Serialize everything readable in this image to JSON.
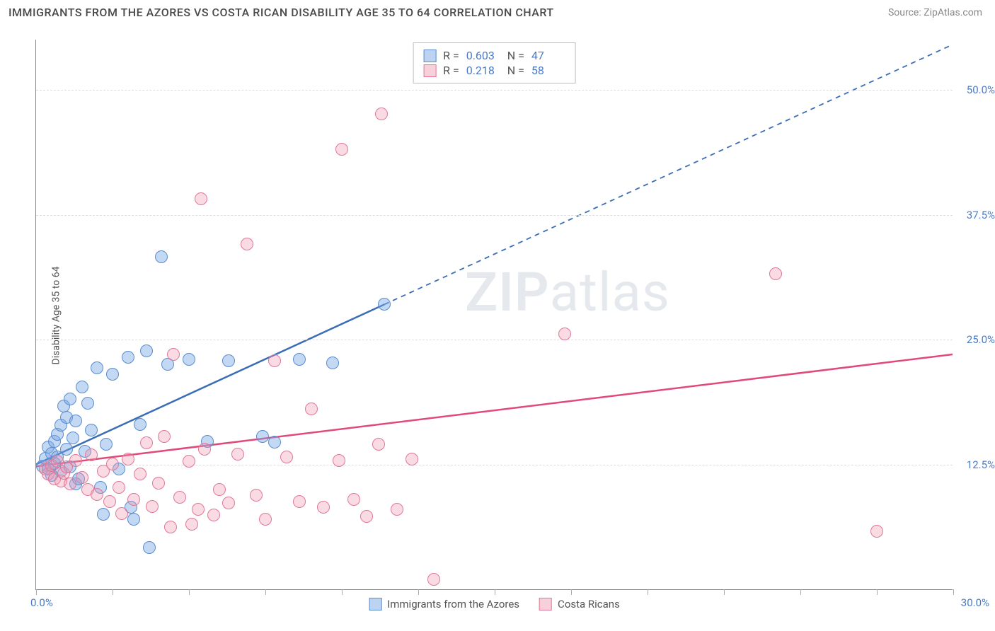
{
  "title": "IMMIGRANTS FROM THE AZORES VS COSTA RICAN DISABILITY AGE 35 TO 64 CORRELATION CHART",
  "source": "Source: ZipAtlas.com",
  "y_axis_label": "Disability Age 35 to 64",
  "watermark_bold": "ZIP",
  "watermark_light": "atlas",
  "chart": {
    "type": "scatter",
    "xlim": [
      0,
      30
    ],
    "ylim": [
      0,
      55
    ],
    "x_ticks": [
      0,
      2.5,
      5,
      7.5,
      10,
      12.5,
      15,
      17.5,
      20,
      22.5,
      25,
      27.5,
      30
    ],
    "x_tick_labels": {
      "0": "0.0%",
      "30": "30.0%"
    },
    "y_gridlines": [
      12.5,
      25,
      37.5,
      50
    ],
    "y_tick_labels": {
      "12.5": "12.5%",
      "25": "25.0%",
      "37.5": "37.5%",
      "50": "50.0%"
    },
    "background_color": "#ffffff",
    "grid_color": "#dddddd",
    "axis_color": "#888888",
    "point_radius": 9
  },
  "series": [
    {
      "key": "azores",
      "label": "Immigrants from the Azores",
      "color_fill": "rgba(122,168,228,0.45)",
      "color_stroke": "#5a8cd0",
      "trend_color": "#3a6db5",
      "R": "0.603",
      "N": "47",
      "trend": {
        "x1": 0,
        "y1": 12.5,
        "x2_solid": 11.4,
        "y2_solid": 28.5,
        "x2_dash": 30,
        "y2_dash": 54.5
      },
      "points": [
        [
          0.2,
          12.3
        ],
        [
          0.3,
          13.1
        ],
        [
          0.4,
          12.0
        ],
        [
          0.4,
          14.2
        ],
        [
          0.5,
          11.4
        ],
        [
          0.5,
          13.6
        ],
        [
          0.6,
          14.8
        ],
        [
          0.6,
          12.6
        ],
        [
          0.7,
          15.5
        ],
        [
          0.7,
          13.2
        ],
        [
          0.8,
          11.8
        ],
        [
          0.8,
          16.4
        ],
        [
          0.9,
          18.3
        ],
        [
          1.0,
          14.0
        ],
        [
          1.0,
          17.2
        ],
        [
          1.1,
          12.2
        ],
        [
          1.1,
          19.0
        ],
        [
          1.2,
          15.1
        ],
        [
          1.3,
          10.5
        ],
        [
          1.3,
          16.8
        ],
        [
          1.4,
          11.0
        ],
        [
          1.5,
          20.2
        ],
        [
          1.6,
          13.8
        ],
        [
          1.7,
          18.6
        ],
        [
          1.8,
          15.9
        ],
        [
          2.0,
          22.1
        ],
        [
          2.1,
          10.2
        ],
        [
          2.2,
          7.5
        ],
        [
          2.3,
          14.5
        ],
        [
          2.5,
          21.5
        ],
        [
          2.7,
          12.0
        ],
        [
          3.0,
          23.2
        ],
        [
          3.2,
          7.0
        ],
        [
          3.4,
          16.5
        ],
        [
          3.6,
          23.8
        ],
        [
          3.7,
          4.2
        ],
        [
          4.1,
          33.2
        ],
        [
          4.3,
          22.5
        ],
        [
          5.0,
          23.0
        ],
        [
          5.6,
          14.8
        ],
        [
          6.3,
          22.8
        ],
        [
          7.4,
          15.3
        ],
        [
          7.8,
          14.7
        ],
        [
          8.6,
          23.0
        ],
        [
          9.7,
          22.6
        ],
        [
          11.4,
          28.5
        ],
        [
          3.1,
          8.2
        ]
      ]
    },
    {
      "key": "costaricans",
      "label": "Costa Ricans",
      "color_fill": "rgba(240,150,175,0.35)",
      "color_stroke": "#e07898",
      "trend_color": "#e04a78",
      "R": "0.218",
      "N": "58",
      "trend": {
        "x1": 0,
        "y1": 12.3,
        "x2_solid": 30,
        "y2_solid": 23.5,
        "x2_dash": 30,
        "y2_dash": 23.5
      },
      "points": [
        [
          0.3,
          12.0
        ],
        [
          0.4,
          11.5
        ],
        [
          0.5,
          12.4
        ],
        [
          0.6,
          11.0
        ],
        [
          0.7,
          12.8
        ],
        [
          0.8,
          10.8
        ],
        [
          0.9,
          11.6
        ],
        [
          1.0,
          12.2
        ],
        [
          1.1,
          10.5
        ],
        [
          1.3,
          12.9
        ],
        [
          1.5,
          11.2
        ],
        [
          1.7,
          10.0
        ],
        [
          1.8,
          13.4
        ],
        [
          2.0,
          9.5
        ],
        [
          2.2,
          11.8
        ],
        [
          2.4,
          8.8
        ],
        [
          2.5,
          12.5
        ],
        [
          2.7,
          10.2
        ],
        [
          2.8,
          7.6
        ],
        [
          3.0,
          13.0
        ],
        [
          3.2,
          9.0
        ],
        [
          3.4,
          11.5
        ],
        [
          3.6,
          14.6
        ],
        [
          3.8,
          8.3
        ],
        [
          4.0,
          10.6
        ],
        [
          4.2,
          15.3
        ],
        [
          4.5,
          23.5
        ],
        [
          4.7,
          9.2
        ],
        [
          5.0,
          12.8
        ],
        [
          5.3,
          8.0
        ],
        [
          5.5,
          14.0
        ],
        [
          5.8,
          7.4
        ],
        [
          5.4,
          39.0
        ],
        [
          6.0,
          10.0
        ],
        [
          6.3,
          8.6
        ],
        [
          6.6,
          13.5
        ],
        [
          6.9,
          34.5
        ],
        [
          7.2,
          9.4
        ],
        [
          7.5,
          7.0
        ],
        [
          7.8,
          22.8
        ],
        [
          8.2,
          13.2
        ],
        [
          8.6,
          8.8
        ],
        [
          9.0,
          18.0
        ],
        [
          9.4,
          8.2
        ],
        [
          9.9,
          12.9
        ],
        [
          10.0,
          44.0
        ],
        [
          10.4,
          9.0
        ],
        [
          10.8,
          7.3
        ],
        [
          11.2,
          14.5
        ],
        [
          11.3,
          47.5
        ],
        [
          11.8,
          8.0
        ],
        [
          12.3,
          13.0
        ],
        [
          13.0,
          1.0
        ],
        [
          17.3,
          25.5
        ],
        [
          24.2,
          31.5
        ],
        [
          27.5,
          5.8
        ],
        [
          5.1,
          6.5
        ],
        [
          4.4,
          6.2
        ]
      ]
    }
  ],
  "info_box": {
    "rows": [
      {
        "swatch": "blue",
        "R_label": "R =",
        "R_val": "0.603",
        "N_label": "N =",
        "N_val": "47"
      },
      {
        "swatch": "pink",
        "R_label": "R =",
        "R_val": "0.218",
        "N_label": "N =",
        "N_val": "58"
      }
    ]
  },
  "bottom_legend": [
    {
      "swatch": "blue",
      "label": "Immigrants from the Azores"
    },
    {
      "swatch": "pink",
      "label": "Costa Ricans"
    }
  ]
}
